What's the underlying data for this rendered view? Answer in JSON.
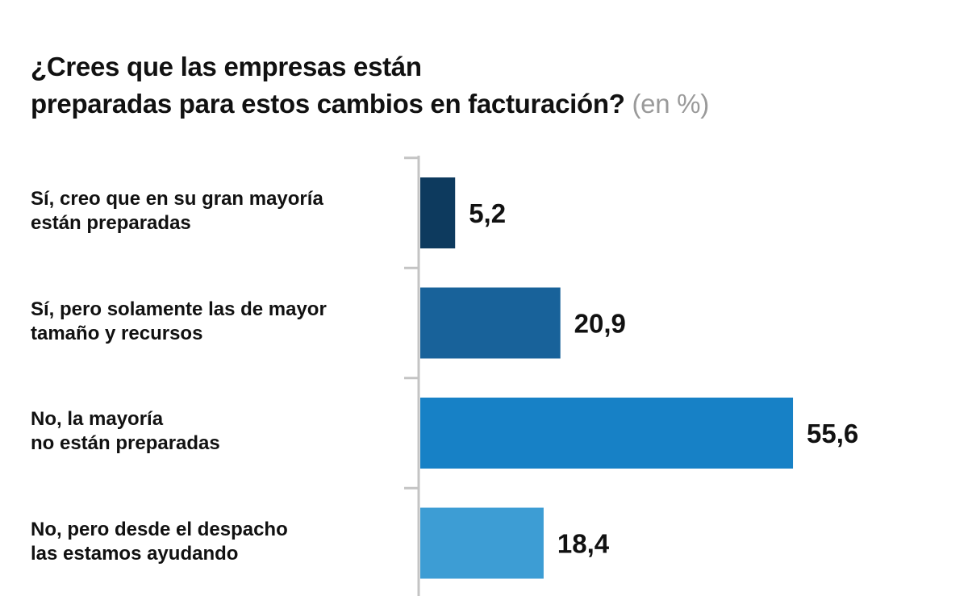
{
  "title": {
    "line1": "¿Crees que las empresas están",
    "line2": "preparadas para estos cambios en facturación?",
    "unit": "(en %)"
  },
  "chart_data": {
    "type": "bar",
    "orientation": "horizontal",
    "title": "¿Crees que las empresas están preparadas para estos cambios en facturación? (en %)",
    "categories": [
      {
        "line1": "Sí, creo que en su gran mayoría",
        "line2": "están preparadas"
      },
      {
        "line1": "Sí, pero solamente las de mayor",
        "line2": "tamaño y recursos"
      },
      {
        "line1": "No, la mayoría",
        "line2": "no están preparadas"
      },
      {
        "line1": "No, pero desde el despacho",
        "line2": "las estamos ayudando"
      }
    ],
    "values": [
      5.2,
      20.9,
      55.6,
      18.4
    ],
    "value_labels": [
      "5,2",
      "20,9",
      "55,6",
      "18,4"
    ],
    "colors": [
      "#0d3a5e",
      "#18629a",
      "#1781c6",
      "#3d9dd4"
    ],
    "xlim": [
      0,
      60
    ],
    "grid": false,
    "legend": "none"
  }
}
